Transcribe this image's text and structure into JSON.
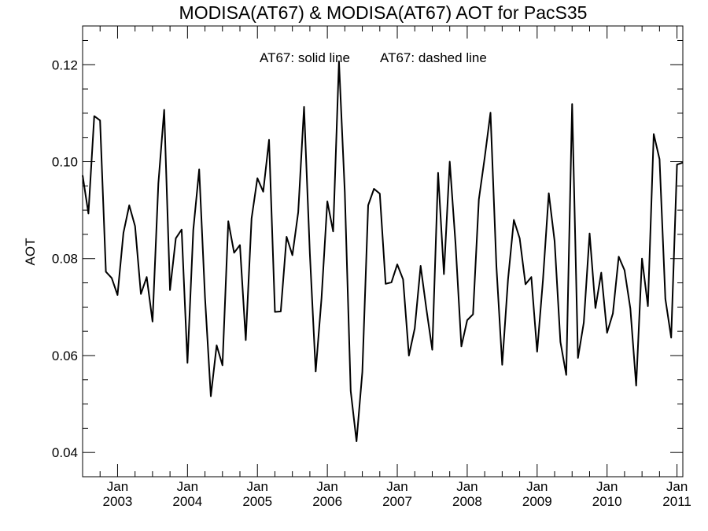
{
  "chart_data": {
    "type": "line",
    "title": "MODISA(AT67) & MODISA(AT67)  AOT for PacS35",
    "ylabel": "AOT",
    "xlabel": "",
    "annotations": [
      "AT67: solid line",
      "AT67: dashed line"
    ],
    "x_ticks": [
      {
        "month": "Jan",
        "year": "2003",
        "date": "2003-01"
      },
      {
        "month": "Jan",
        "year": "2004",
        "date": "2004-01"
      },
      {
        "month": "Jan",
        "year": "2005",
        "date": "2005-01"
      },
      {
        "month": "Jan",
        "year": "2006",
        "date": "2006-01"
      },
      {
        "month": "Jan",
        "year": "2007",
        "date": "2007-01"
      },
      {
        "month": "Jan",
        "year": "2008",
        "date": "2008-01"
      },
      {
        "month": "Jan",
        "year": "2009",
        "date": "2009-01"
      },
      {
        "month": "Jan",
        "year": "2010",
        "date": "2010-01"
      },
      {
        "month": "Jan",
        "year": "2011",
        "date": "2011-01"
      }
    ],
    "y_ticks": [
      "0.04",
      "0.06",
      "0.08",
      "0.10",
      "0.12"
    ],
    "xlim": [
      "2002-07",
      "2011-02"
    ],
    "ylim": [
      0.035,
      0.128
    ],
    "series": [
      {
        "style": "solid",
        "color": "#000000",
        "x": [
          "2002-07",
          "2002-08",
          "2002-09",
          "2002-10",
          "2002-11",
          "2002-12",
          "2003-01",
          "2003-02",
          "2003-03",
          "2003-04",
          "2003-05",
          "2003-06",
          "2003-07",
          "2003-08",
          "2003-09",
          "2003-10",
          "2003-11",
          "2003-12",
          "2004-01",
          "2004-02",
          "2004-03",
          "2004-04",
          "2004-05",
          "2004-06",
          "2004-07",
          "2004-08",
          "2004-09",
          "2004-10",
          "2004-11",
          "2004-12",
          "2005-01",
          "2005-02",
          "2005-03",
          "2005-04",
          "2005-05",
          "2005-06",
          "2005-07",
          "2005-08",
          "2005-09",
          "2005-10",
          "2005-11",
          "2005-12",
          "2006-01",
          "2006-02",
          "2006-03",
          "2006-04",
          "2006-05",
          "2006-06",
          "2006-07",
          "2006-08",
          "2006-09",
          "2006-10",
          "2006-11",
          "2006-12",
          "2007-01",
          "2007-02",
          "2007-03",
          "2007-04",
          "2007-05",
          "2007-06",
          "2007-07",
          "2007-08",
          "2007-09",
          "2007-10",
          "2007-11",
          "2007-12",
          "2008-01",
          "2008-02",
          "2008-03",
          "2008-04",
          "2008-05",
          "2008-06",
          "2008-07",
          "2008-08",
          "2008-09",
          "2008-10",
          "2008-11",
          "2008-12",
          "2009-01",
          "2009-02",
          "2009-03",
          "2009-04",
          "2009-05",
          "2009-06",
          "2009-07",
          "2009-08",
          "2009-09",
          "2009-10",
          "2009-11",
          "2009-12",
          "2010-01",
          "2010-02",
          "2010-03",
          "2010-04",
          "2010-05",
          "2010-06",
          "2010-07",
          "2010-08",
          "2010-09",
          "2010-10",
          "2010-11",
          "2010-12",
          "2011-01",
          "2011-02"
        ],
        "values": [
          0.0972,
          0.0893,
          0.1094,
          0.1085,
          0.0773,
          0.076,
          0.0725,
          0.0853,
          0.091,
          0.0867,
          0.0727,
          0.0762,
          0.067,
          0.0955,
          0.1107,
          0.0735,
          0.0842,
          0.086,
          0.0585,
          0.0859,
          0.0984,
          0.072,
          0.0516,
          0.0621,
          0.058,
          0.0877,
          0.0812,
          0.0828,
          0.0632,
          0.0883,
          0.0966,
          0.0938,
          0.1045,
          0.069,
          0.0691,
          0.0845,
          0.0807,
          0.0896,
          0.1113,
          0.081,
          0.0567,
          0.0718,
          0.0918,
          0.0856,
          0.1207,
          0.0937,
          0.0527,
          0.0423,
          0.0566,
          0.091,
          0.0944,
          0.0934,
          0.0748,
          0.0751,
          0.0788,
          0.0757,
          0.06,
          0.0656,
          0.0785,
          0.0695,
          0.0612,
          0.0977,
          0.0768,
          0.1,
          0.083,
          0.0619,
          0.0673,
          0.0685,
          0.0922,
          0.1008,
          0.1101,
          0.0785,
          0.0581,
          0.0757,
          0.088,
          0.0842,
          0.0747,
          0.0762,
          0.0608,
          0.0756,
          0.0935,
          0.0836,
          0.0628,
          0.056,
          0.1119,
          0.0595,
          0.0668,
          0.0852,
          0.0698,
          0.0771,
          0.0647,
          0.0687,
          0.0804,
          0.0776,
          0.0697,
          0.0538,
          0.08,
          0.0702,
          0.1057,
          0.1005,
          0.0717,
          0.0637,
          0.0994,
          0.0998
        ]
      }
    ],
    "grid": false,
    "legend": "none"
  }
}
